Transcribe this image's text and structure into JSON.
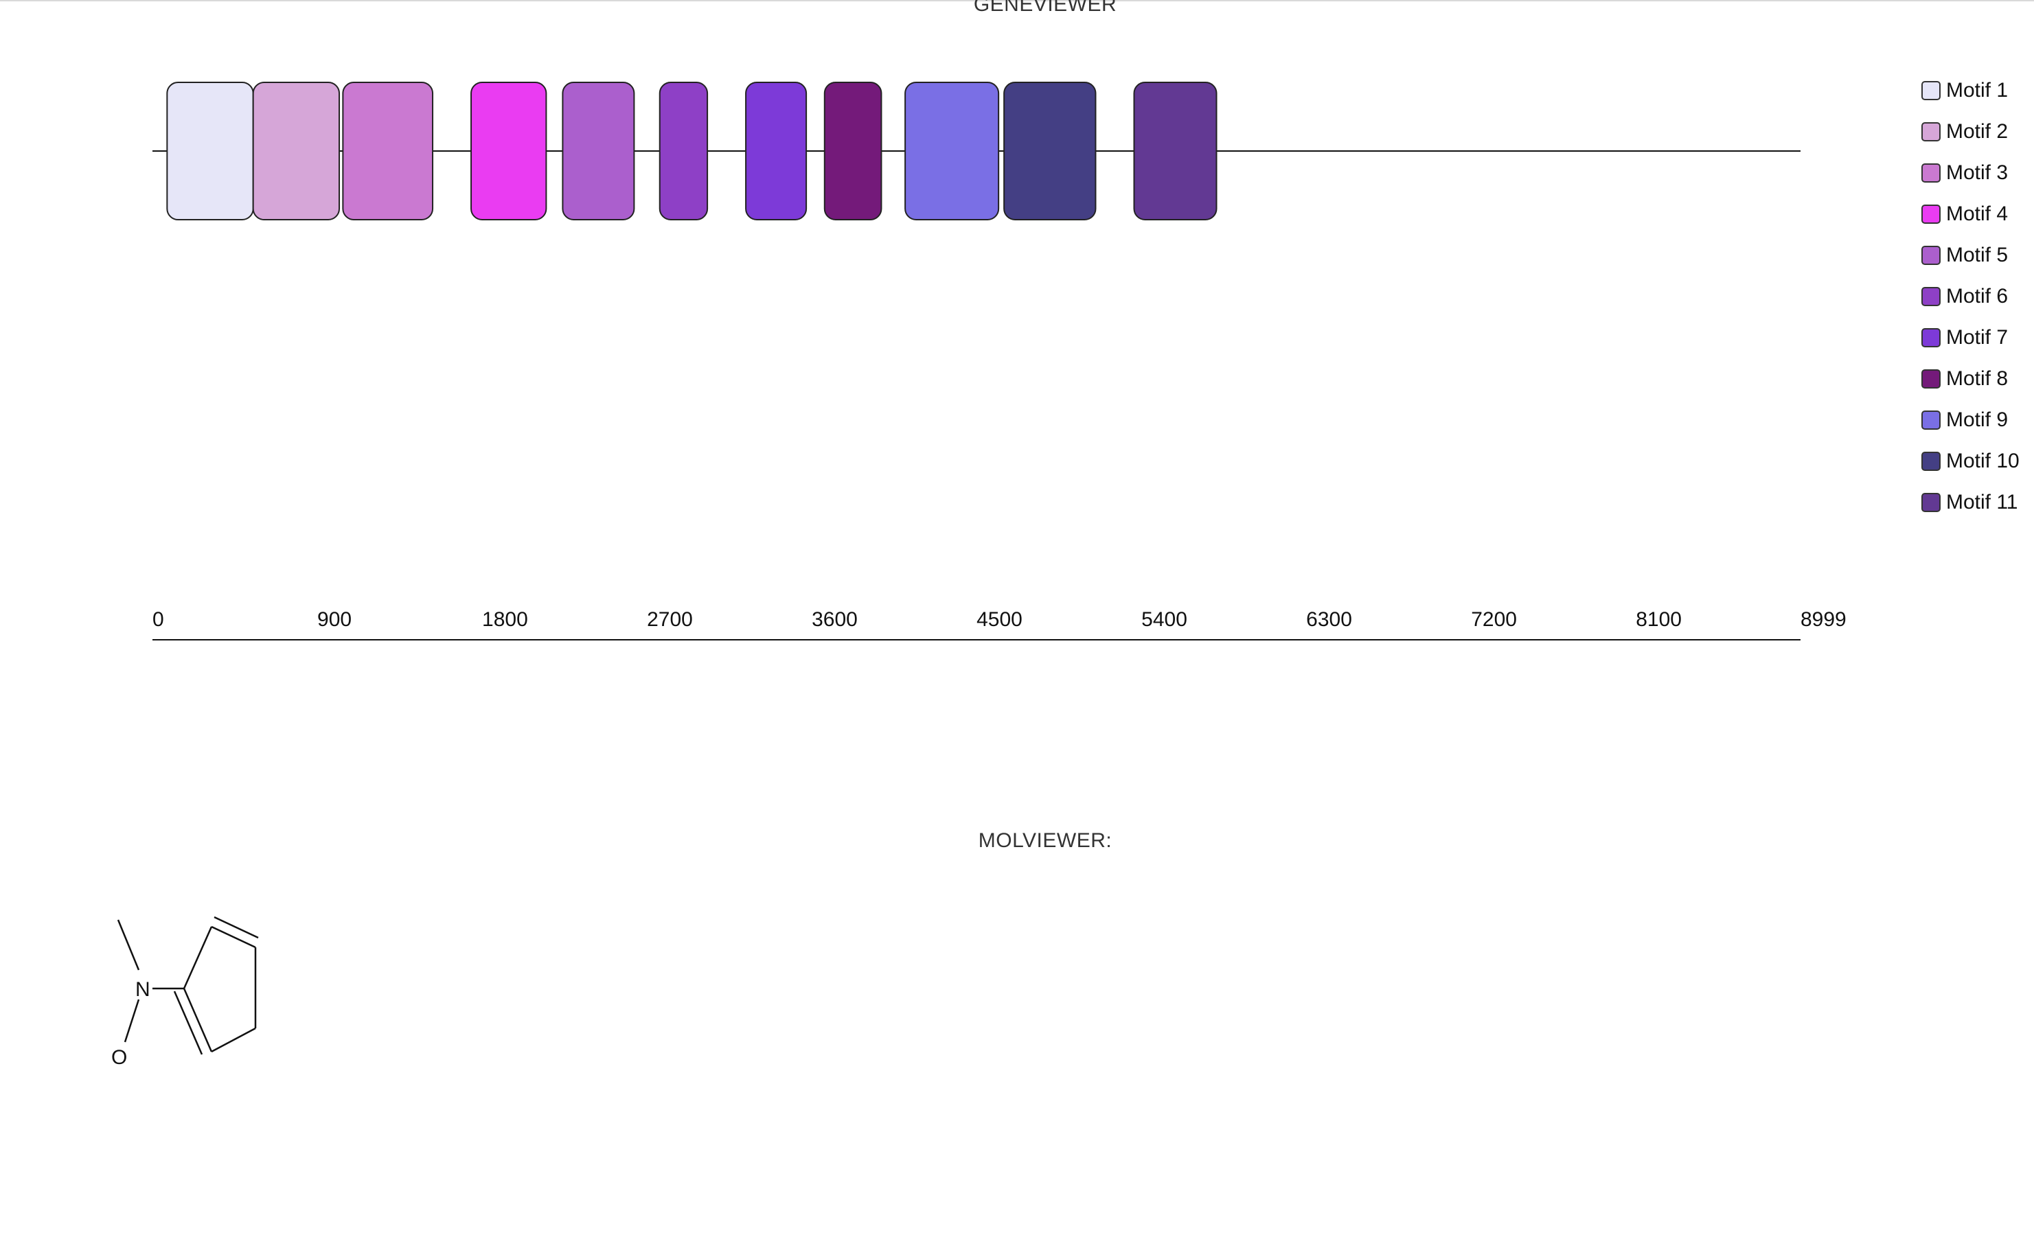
{
  "gene_viewer": {
    "title": "GENEVIEWER",
    "track": {
      "start": 0,
      "end": 8999
    },
    "motifs": [
      {
        "name": "Motif 1",
        "start": 80,
        "end": 550,
        "color": "#e6e6f8"
      },
      {
        "name": "Motif 2",
        "start": 550,
        "end": 1020,
        "color": "#d6a6d8"
      },
      {
        "name": "Motif 3",
        "start": 1040,
        "end": 1530,
        "color": "#ca79d1"
      },
      {
        "name": "Motif 4",
        "start": 1740,
        "end": 2150,
        "color": "#ea3cf2"
      },
      {
        "name": "Motif 5",
        "start": 2240,
        "end": 2630,
        "color": "#ab5fcd"
      },
      {
        "name": "Motif 6",
        "start": 2770,
        "end": 3030,
        "color": "#8e40c6"
      },
      {
        "name": "Motif 7",
        "start": 3240,
        "end": 3570,
        "color": "#7d3ad8"
      },
      {
        "name": "Motif 8",
        "start": 3670,
        "end": 3980,
        "color": "#741a7a"
      },
      {
        "name": "Motif 9",
        "start": 4110,
        "end": 4620,
        "color": "#7a6fe5"
      },
      {
        "name": "Motif 10",
        "start": 4650,
        "end": 5150,
        "color": "#443f84"
      },
      {
        "name": "Motif 11",
        "start": 5360,
        "end": 5810,
        "color": "#623993"
      }
    ],
    "axis": {
      "ticks": [
        0,
        900,
        1800,
        2700,
        3600,
        4500,
        5400,
        6300,
        7200,
        8100,
        8999
      ]
    }
  },
  "mol_viewer": {
    "title": "MOLVIEWER:",
    "atom_labels": {
      "nitrogen": "N",
      "oxygen": "O"
    }
  }
}
